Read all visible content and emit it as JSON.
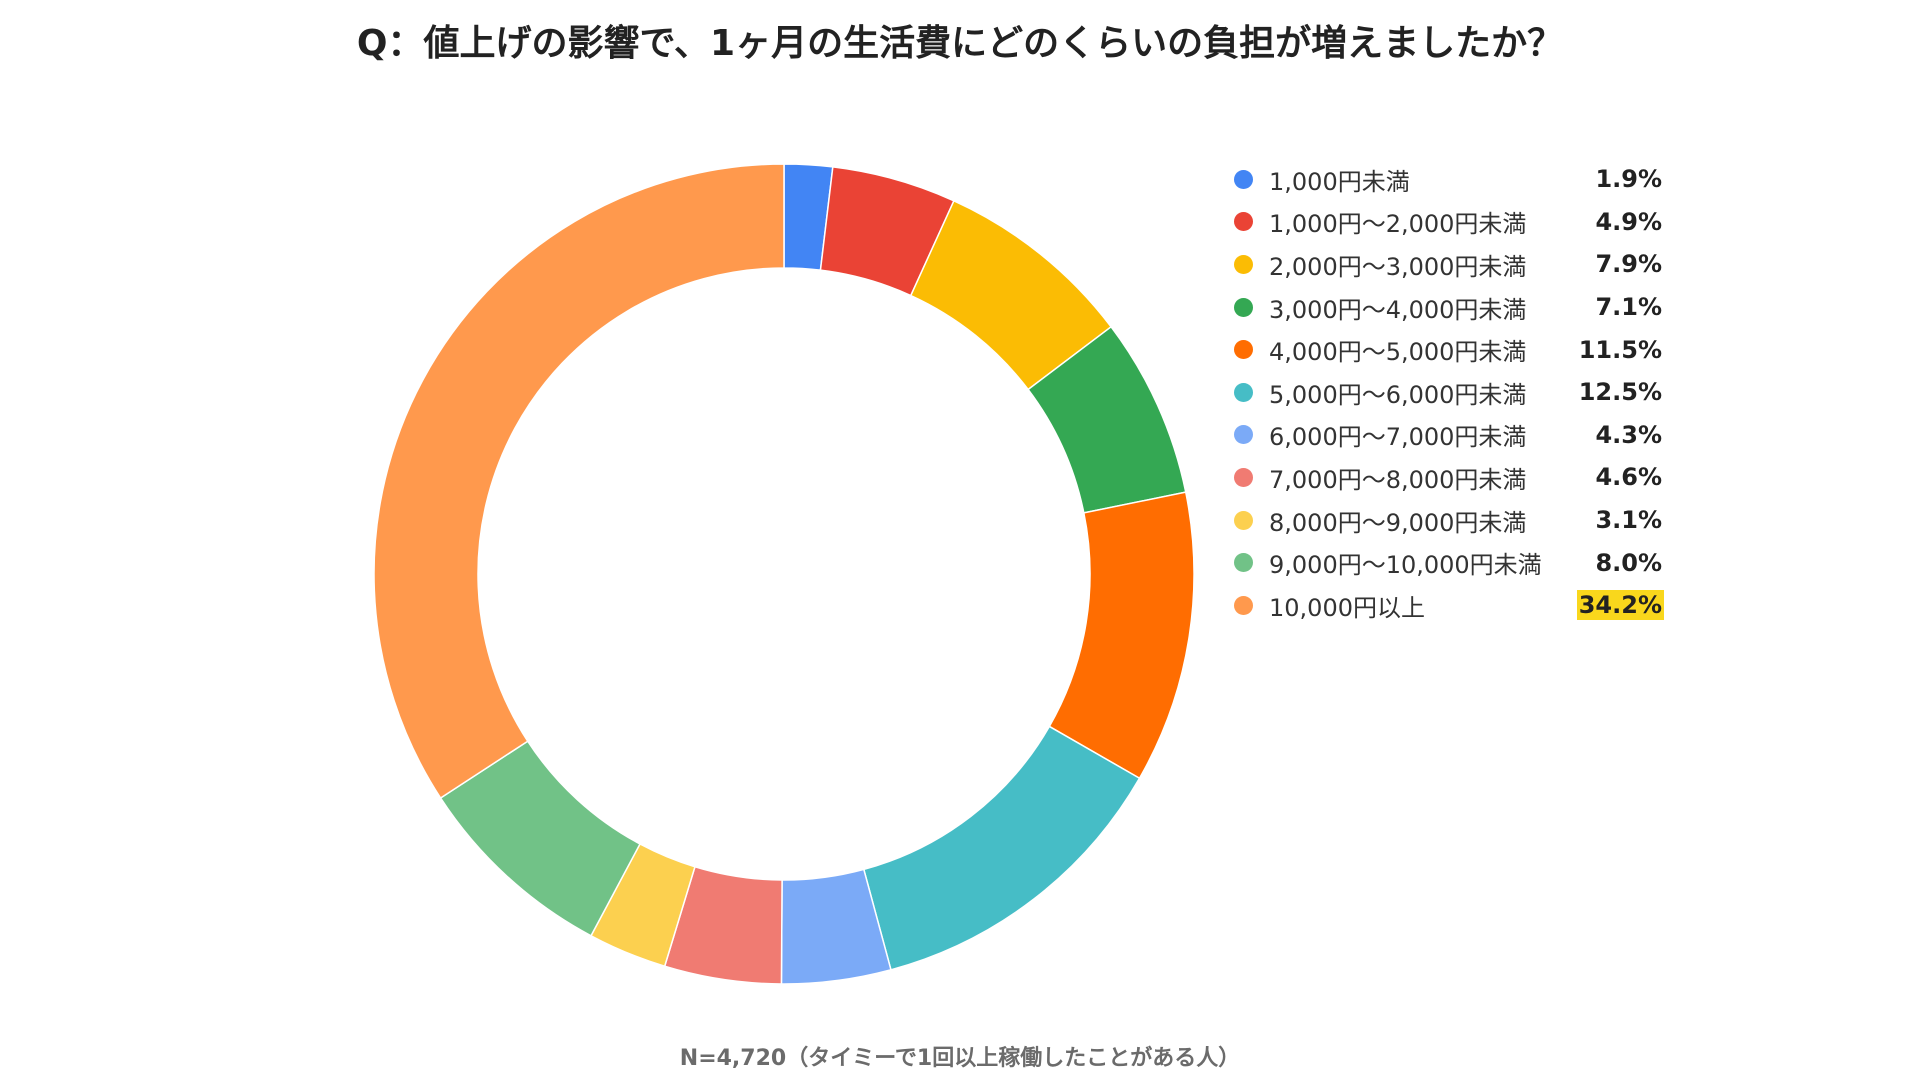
{
  "chart_data": {
    "type": "pie",
    "title": "Q：値上げの影響で、1ヶ月の生活費にどのくらいの負担が増えましたか？",
    "footnote": "N=4,720（タイミーで1回以上稼働したことがある人）",
    "legend_position": "right",
    "categories": [
      "1,000円未満",
      "1,000円～2,000円未満",
      "2,000円～3,000円未満",
      "3,000円～4,000円未満",
      "4,000円～5,000円未満",
      "5,000円～6,000円未満",
      "6,000円～7,000円未満",
      "7,000円～8,000円未満",
      "8,000円～9,000円未満",
      "9,000円～10,000円未満",
      "10,000円以上"
    ],
    "values": [
      1.9,
      4.9,
      7.9,
      7.1,
      11.5,
      12.5,
      4.3,
      4.6,
      3.1,
      8.0,
      34.2
    ],
    "value_labels": [
      "1.9%",
      "4.9%",
      "7.9%",
      "7.1%",
      "11.5%",
      "12.5%",
      "4.3%",
      "4.6%",
      "3.1%",
      "8.0%",
      "34.2%"
    ],
    "colors": [
      "#4285f4",
      "#ea4335",
      "#fbbc04",
      "#34a853",
      "#ff6d01",
      "#46bdc6",
      "#7baaf7",
      "#f07b72",
      "#fcd04f",
      "#71c287",
      "#ff994d"
    ],
    "highlight_index": 10,
    "highlight_color": "#f9d71c"
  }
}
